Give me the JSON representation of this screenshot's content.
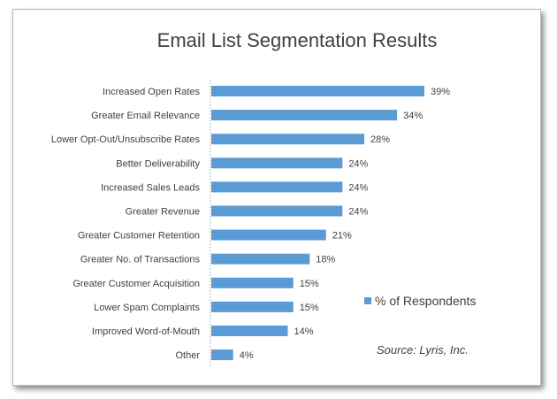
{
  "chart_data": {
    "type": "bar",
    "orientation": "horizontal",
    "title": "Email List Segmentation Results",
    "categories": [
      "Increased Open Rates",
      "Greater Email Relevance",
      "Lower Opt-Out/Unsubscribe Rates",
      "Better Deliverability",
      "Increased Sales Leads",
      "Greater Revenue",
      "Greater Customer Retention",
      "Greater No. of Transactions",
      "Greater Customer Acquisition",
      "Lower Spam Complaints",
      "Improved Word-of-Mouth",
      "Other"
    ],
    "series": [
      {
        "name": "% of Respondents",
        "values": [
          39,
          34,
          28,
          24,
          24,
          24,
          21,
          18,
          15,
          15,
          14,
          4
        ],
        "labels": [
          "39%",
          "34%",
          "28%",
          "24%",
          "24%",
          "24%",
          "21%",
          "18%",
          "15%",
          "15%",
          "14%",
          "4%"
        ],
        "color": "#5b9bd5"
      }
    ],
    "source": "Source: Lyris, Inc.",
    "legend_position": "right",
    "grid": false,
    "axis_color": "#a6a6a6"
  }
}
